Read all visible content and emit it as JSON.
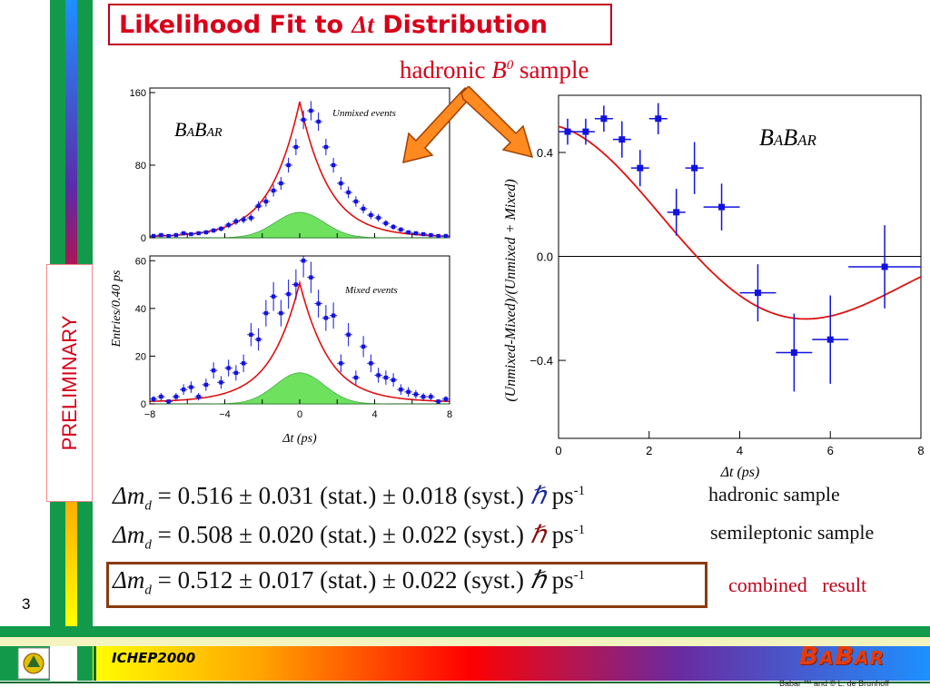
{
  "slide": {
    "title_pre": "Likelihood Fit to ",
    "title_delta": "Δt",
    "title_post": " Distribution",
    "hadronic_label_pre": "hadronic ",
    "hadronic_label_B": "B",
    "hadronic_label_sup": "0",
    "hadronic_label_post": " sample",
    "preliminary": "PRELIMINARY",
    "page_number": "3",
    "footer_conference": "ICHEP2000",
    "footer_logo": "BABAR",
    "footer_copyright": "Babar ™ and © L. de Brunhoff"
  },
  "results": [
    {
      "symbol": "Δm",
      "sub": "d",
      "eq": "= 0.516 ± 0.031 (stat.) ± 0.018 (syst.)",
      "hbar": "ℏ",
      "unit": "ps",
      "unit_sup": "-1",
      "note": "hadronic sample"
    },
    {
      "symbol": "Δm",
      "sub": "d",
      "eq": "= 0.508 ± 0.020 (stat.) ± 0.022 (syst.)",
      "hbar": "ℏ",
      "unit": "ps",
      "unit_sup": "-1",
      "note": "semileptonic sample"
    },
    {
      "symbol": "Δm",
      "sub": "d",
      "eq": "= 0.512 ± 0.017 (stat.) ± 0.022 (syst.)",
      "hbar": "ℏ",
      "unit": "ps",
      "unit_sup": "-1",
      "note": "combined   result"
    }
  ],
  "colors": {
    "title_red": "#d8001a",
    "fit_red": "#e01010",
    "data_blue": "#1212e0",
    "signal_green": "#55dd44",
    "frame": "#8a3a10"
  },
  "chart_data": [
    {
      "type": "scatter",
      "panel": "top-left",
      "annotation": "Unmixed events",
      "watermark": "BABAR",
      "ylabel": "Entries/0.40 ps",
      "xlabel": "",
      "xlim": [
        -8,
        8
      ],
      "ylim": [
        0,
        165
      ],
      "y_ticks": [
        0,
        80,
        160
      ],
      "x": [
        -7.8,
        -7.4,
        -7.0,
        -6.6,
        -6.2,
        -5.8,
        -5.4,
        -5.0,
        -4.6,
        -4.2,
        -3.8,
        -3.4,
        -3.0,
        -2.6,
        -2.2,
        -1.8,
        -1.4,
        -1.0,
        -0.6,
        -0.2,
        0.2,
        0.6,
        1.0,
        1.4,
        1.8,
        2.2,
        2.6,
        3.0,
        3.4,
        3.8,
        4.2,
        4.6,
        5.0,
        5.4,
        5.8,
        6.2,
        6.6,
        7.0,
        7.4,
        7.8
      ],
      "y": [
        2,
        3,
        2,
        3,
        5,
        4,
        5,
        6,
        8,
        10,
        14,
        18,
        20,
        22,
        35,
        40,
        52,
        60,
        80,
        100,
        130,
        140,
        128,
        100,
        80,
        60,
        50,
        40,
        32,
        25,
        22,
        16,
        12,
        9,
        6,
        5,
        4,
        3,
        2,
        2
      ],
      "series": [
        {
          "name": "",
          "role": "fit"
        },
        {
          "name": "",
          "role": "signal"
        }
      ]
    },
    {
      "type": "scatter",
      "panel": "bottom-left",
      "annotation": "Mixed events",
      "ylabel": "",
      "xlabel": "Δt (ps)",
      "xlim": [
        -8,
        8
      ],
      "ylim": [
        0,
        62
      ],
      "x_ticks": [
        -8,
        -4,
        0,
        4,
        8
      ],
      "y_ticks": [
        0,
        20,
        40,
        60
      ],
      "x": [
        -7.8,
        -7.4,
        -7.0,
        -6.6,
        -6.2,
        -5.8,
        -5.4,
        -5.0,
        -4.6,
        -4.2,
        -3.8,
        -3.4,
        -3.0,
        -2.6,
        -2.2,
        -1.8,
        -1.4,
        -1.0,
        -0.6,
        -0.2,
        0.2,
        0.6,
        1.0,
        1.4,
        1.8,
        2.2,
        2.6,
        3.0,
        3.4,
        3.8,
        4.2,
        4.6,
        5.0,
        5.4,
        5.8,
        6.2,
        6.6,
        7.0,
        7.4,
        7.8
      ],
      "y": [
        2,
        3,
        1,
        3,
        6,
        7,
        3,
        8,
        14,
        9,
        15,
        13,
        17,
        29,
        27,
        38,
        45,
        38,
        46,
        50,
        60,
        53,
        42,
        36,
        37,
        17,
        29,
        11,
        24,
        17,
        12,
        11,
        10,
        6,
        5,
        4,
        3,
        3,
        1,
        2
      ],
      "series": [
        {
          "name": "",
          "role": "fit"
        },
        {
          "name": "",
          "role": "signal"
        }
      ]
    },
    {
      "type": "scatter",
      "panel": "right",
      "watermark": "BABAR",
      "xlabel": "Δt (ps)",
      "ylabel": "(Unmixed-Mixed)/(Unmixed + Mixed)",
      "xlim": [
        0,
        8
      ],
      "ylim": [
        -0.7,
        0.62
      ],
      "x_ticks": [
        0,
        2,
        4,
        6,
        8
      ],
      "y_ticks": [
        -0.4,
        0.0,
        0.4
      ],
      "y_tick_labels": [
        "−0.4",
        "0.0",
        "0.4"
      ],
      "points": [
        {
          "x": 0.2,
          "y": 0.48,
          "yerr": 0.05,
          "xerr": 0.2
        },
        {
          "x": 0.6,
          "y": 0.48,
          "yerr": 0.05,
          "xerr": 0.2
        },
        {
          "x": 1.0,
          "y": 0.53,
          "yerr": 0.05,
          "xerr": 0.2
        },
        {
          "x": 1.4,
          "y": 0.45,
          "yerr": 0.07,
          "xerr": 0.2
        },
        {
          "x": 1.8,
          "y": 0.34,
          "yerr": 0.07,
          "xerr": 0.2
        },
        {
          "x": 2.2,
          "y": 0.53,
          "yerr": 0.06,
          "xerr": 0.2
        },
        {
          "x": 2.6,
          "y": 0.17,
          "yerr": 0.09,
          "xerr": 0.2
        },
        {
          "x": 3.0,
          "y": 0.34,
          "yerr": 0.1,
          "xerr": 0.2
        },
        {
          "x": 3.6,
          "y": 0.19,
          "yerr": 0.09,
          "xerr": 0.4
        },
        {
          "x": 4.4,
          "y": -0.14,
          "yerr": 0.11,
          "xerr": 0.4
        },
        {
          "x": 5.2,
          "y": -0.37,
          "yerr": 0.15,
          "xerr": 0.4
        },
        {
          "x": 6.0,
          "y": -0.32,
          "yerr": 0.17,
          "xerr": 0.4
        },
        {
          "x": 7.2,
          "y": -0.04,
          "yerr": 0.16,
          "xerr": 0.8
        }
      ],
      "series": [
        {
          "name": "",
          "role": "fit"
        }
      ]
    }
  ]
}
